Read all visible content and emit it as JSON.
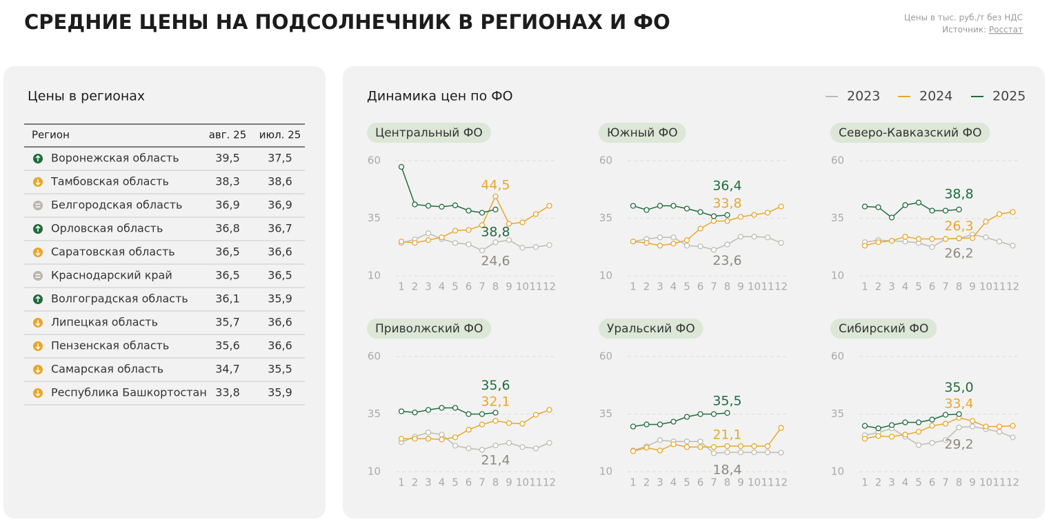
{
  "header": {
    "title": "СРЕДНИЕ ЦЕНЫ НА ПОДСОЛНЕЧНИК В РЕГИОНАХ И ФО",
    "note": "Цены в тыс. руб./т без НДС",
    "source_label": "Источник:",
    "source_link": "Росстат"
  },
  "table": {
    "title": "Цены в регионах",
    "header": [
      "Регион",
      "авг. 25",
      "июл. 25"
    ],
    "rows": [
      {
        "trend": "up",
        "cells": [
          "Воронежская область",
          "39,5",
          "37,5"
        ]
      },
      {
        "trend": "down",
        "cells": [
          "Тамбовская область",
          "38,3",
          "38,6"
        ]
      },
      {
        "trend": "flat",
        "cells": [
          "Белгородская область",
          "36,9",
          "36,9"
        ]
      },
      {
        "trend": "up",
        "cells": [
          "Орловская область",
          "36,8",
          "36,7"
        ]
      },
      {
        "trend": "down",
        "cells": [
          "Саратовская область",
          "36,5",
          "36,6"
        ]
      },
      {
        "trend": "flat",
        "cells": [
          "Краснодарский край",
          "36,5",
          "36,5"
        ]
      },
      {
        "trend": "up",
        "cells": [
          "Волгоградская область",
          "36,1",
          "35,9"
        ]
      },
      {
        "trend": "down",
        "cells": [
          "Липецкая область",
          "35,7",
          "36,6"
        ]
      },
      {
        "trend": "down",
        "cells": [
          "Пензенская область",
          "35,6",
          "36,6"
        ]
      },
      {
        "trend": "down",
        "cells": [
          "Самарская область",
          "34,7",
          "35,5"
        ]
      },
      {
        "trend": "down",
        "cells": [
          "Республика Башкортостан",
          "33,8",
          "35,9"
        ]
      }
    ]
  },
  "panel_title": "Динамика цен по ФО",
  "chart_data": [
    {
      "type": "line",
      "title": "Центральный ФО",
      "categories": [
        "1",
        "2",
        "3",
        "4",
        "5",
        "6",
        "7",
        "8",
        "9",
        "10",
        "11",
        "12"
      ],
      "ylim": [
        10,
        60
      ],
      "yticks": [
        10,
        35,
        60
      ],
      "grid": true,
      "series": [
        {
          "name": "2023",
          "color": "#bdbbb2",
          "values": [
            24.3,
            25.8,
            28.5,
            26,
            24.3,
            23.7,
            21,
            24.6,
            25.5,
            22.2,
            22.5,
            23.4
          ],
          "value_labels": [
            null,
            null,
            null,
            null,
            null,
            null,
            null,
            "24,6",
            null,
            null,
            null,
            null
          ]
        },
        {
          "name": "2024",
          "color": "#e8a629",
          "values": [
            24.9,
            24.3,
            25.5,
            26.7,
            29.6,
            29.9,
            32,
            44.5,
            32.6,
            33.2,
            36.8,
            40.4
          ],
          "value_labels": [
            null,
            null,
            null,
            null,
            null,
            null,
            null,
            "44,5",
            null,
            null,
            null,
            null
          ]
        },
        {
          "name": "2025",
          "color": "#1f6b3c",
          "values": [
            57.3,
            41,
            40.4,
            40,
            40.6,
            38.3,
            37.4,
            38.8,
            null,
            null,
            null,
            null
          ],
          "value_labels": [
            null,
            null,
            null,
            null,
            null,
            null,
            null,
            "38,8",
            null,
            null,
            null,
            null
          ]
        }
      ]
    },
    {
      "type": "line",
      "title": "Южный ФО",
      "categories": [
        "1",
        "2",
        "3",
        "4",
        "5",
        "6",
        "7",
        "8",
        "9",
        "10",
        "11",
        "12"
      ],
      "ylim": [
        10,
        60
      ],
      "yticks": [
        10,
        35,
        60
      ],
      "grid": true,
      "series": [
        {
          "name": "2023",
          "color": "#bdbbb2",
          "values": [
            24.9,
            26,
            26.7,
            26.7,
            23.1,
            22.8,
            21.3,
            23.6,
            27,
            27,
            26.7,
            24.3
          ],
          "value_labels": [
            null,
            null,
            null,
            null,
            null,
            null,
            null,
            "23,6",
            null,
            null,
            null,
            null
          ]
        },
        {
          "name": "2024",
          "color": "#e8a629",
          "values": [
            24.9,
            24.3,
            23.1,
            24,
            25.5,
            30.5,
            33.8,
            33.8,
            35.6,
            36.5,
            37.4,
            40.1
          ],
          "value_labels": [
            null,
            null,
            null,
            null,
            null,
            null,
            null,
            "33,8",
            null,
            null,
            null,
            null
          ]
        },
        {
          "name": "2025",
          "color": "#1f6b3c",
          "values": [
            40.4,
            38.6,
            40.4,
            40.4,
            39.2,
            37.7,
            35.9,
            36.4,
            null,
            null,
            null,
            null
          ],
          "value_labels": [
            null,
            null,
            null,
            null,
            null,
            null,
            null,
            "36,4",
            null,
            null,
            null,
            null
          ]
        }
      ]
    },
    {
      "type": "line",
      "title": "Северо-Кавказский ФО",
      "categories": [
        "1",
        "2",
        "3",
        "4",
        "5",
        "6",
        "7",
        "8",
        "9",
        "10",
        "11",
        "12"
      ],
      "ylim": [
        10,
        60
      ],
      "yticks": [
        10,
        35,
        60
      ],
      "grid": true,
      "series": [
        {
          "name": "2023",
          "color": "#bdbbb2",
          "values": [
            24.6,
            25.5,
            25.2,
            24.9,
            24.3,
            22.5,
            26,
            26.2,
            27.9,
            26.7,
            24.9,
            23.1
          ],
          "value_labels": [
            null,
            null,
            null,
            null,
            null,
            null,
            null,
            "26,2",
            null,
            null,
            null,
            null
          ]
        },
        {
          "name": "2024",
          "color": "#e8a629",
          "values": [
            23.1,
            24.6,
            25.2,
            27,
            26,
            26,
            26,
            26.3,
            26.4,
            33.5,
            36.8,
            37.7
          ],
          "value_labels": [
            null,
            null,
            null,
            null,
            null,
            null,
            null,
            "26,3",
            null,
            null,
            null,
            null
          ]
        },
        {
          "name": "2025",
          "color": "#1f6b3c",
          "values": [
            40.1,
            39.8,
            35.3,
            40.7,
            41.8,
            38.3,
            38.3,
            38.8,
            null,
            null,
            null,
            null
          ],
          "value_labels": [
            null,
            null,
            null,
            null,
            null,
            null,
            null,
            "38,8",
            null,
            null,
            null,
            null
          ]
        }
      ]
    },
    {
      "type": "line",
      "title": "Приволжский ФО",
      "categories": [
        "1",
        "2",
        "3",
        "4",
        "5",
        "6",
        "7",
        "8",
        "9",
        "10",
        "11",
        "12"
      ],
      "ylim": [
        10,
        60
      ],
      "yticks": [
        10,
        35,
        60
      ],
      "grid": true,
      "series": [
        {
          "name": "2023",
          "color": "#bdbbb2",
          "values": [
            22.8,
            25.2,
            27,
            26.1,
            21.3,
            20.1,
            19.5,
            21.4,
            22.5,
            20.7,
            20.1,
            22.5
          ],
          "value_labels": [
            null,
            null,
            null,
            null,
            null,
            null,
            null,
            "21,4",
            null,
            null,
            null,
            null
          ]
        },
        {
          "name": "2024",
          "color": "#e8a629",
          "values": [
            24.3,
            24.3,
            24.3,
            24,
            24.9,
            28.2,
            30.5,
            32.1,
            31.1,
            30.8,
            34.7,
            36.8
          ],
          "value_labels": [
            null,
            null,
            null,
            null,
            null,
            null,
            null,
            "32,1",
            null,
            null,
            null,
            null
          ]
        },
        {
          "name": "2025",
          "color": "#1f6b3c",
          "values": [
            36.2,
            35.7,
            36.8,
            37.7,
            37.7,
            35,
            35,
            35.6,
            null,
            null,
            null,
            null
          ],
          "value_labels": [
            null,
            null,
            null,
            null,
            null,
            null,
            null,
            "35,6",
            null,
            null,
            null,
            null
          ]
        }
      ]
    },
    {
      "type": "line",
      "title": "Уральский ФО",
      "categories": [
        "1",
        "2",
        "3",
        "4",
        "5",
        "6",
        "7",
        "8",
        "9",
        "10",
        "11",
        "12"
      ],
      "ylim": [
        10,
        60
      ],
      "yticks": [
        10,
        35,
        60
      ],
      "grid": true,
      "series": [
        {
          "name": "2023",
          "color": "#bdbbb2",
          "values": [
            19.2,
            21,
            23.7,
            23.1,
            23.1,
            23.1,
            18,
            18.4,
            18.4,
            18.4,
            18.4,
            18.3
          ],
          "value_labels": [
            null,
            null,
            null,
            null,
            null,
            null,
            null,
            "18,4",
            null,
            null,
            null,
            null
          ]
        },
        {
          "name": "2024",
          "color": "#e8a629",
          "values": [
            18.9,
            20.4,
            19.2,
            21.9,
            20.7,
            20.7,
            20.7,
            21.1,
            21.1,
            21.1,
            21.1,
            29
          ],
          "value_labels": [
            null,
            null,
            null,
            null,
            null,
            null,
            null,
            "21,1",
            null,
            null,
            null,
            null
          ]
        },
        {
          "name": "2025",
          "color": "#1f6b3c",
          "values": [
            29.6,
            30.5,
            30.5,
            31.7,
            33.8,
            35,
            35,
            35.5,
            null,
            null,
            null,
            null
          ],
          "value_labels": [
            null,
            null,
            null,
            null,
            null,
            null,
            null,
            "35,5",
            null,
            null,
            null,
            null
          ]
        }
      ]
    },
    {
      "type": "line",
      "title": "Сибирский ФО",
      "categories": [
        "1",
        "2",
        "3",
        "4",
        "5",
        "6",
        "7",
        "8",
        "9",
        "10",
        "11",
        "12"
      ],
      "ylim": [
        10,
        60
      ],
      "yticks": [
        10,
        35,
        60
      ],
      "grid": true,
      "series": [
        {
          "name": "2023",
          "color": "#bdbbb2",
          "values": [
            25.8,
            27,
            28.8,
            25.2,
            21.6,
            22.5,
            23.7,
            29.2,
            29.6,
            28.5,
            27.3,
            24.9
          ],
          "value_labels": [
            null,
            null,
            null,
            null,
            null,
            null,
            null,
            "29,2",
            null,
            null,
            null,
            null
          ]
        },
        {
          "name": "2024",
          "color": "#e8a629",
          "values": [
            24.3,
            25.5,
            25.2,
            26.1,
            27.3,
            29.9,
            30.8,
            33.4,
            32,
            29.6,
            29.6,
            29.9
          ],
          "value_labels": [
            null,
            null,
            null,
            null,
            null,
            null,
            null,
            "33,4",
            null,
            null,
            null,
            null
          ]
        },
        {
          "name": "2025",
          "color": "#1f6b3c",
          "values": [
            29.9,
            28.8,
            30.2,
            31.4,
            31.4,
            32.6,
            34.7,
            35,
            null,
            null,
            null,
            null
          ],
          "value_labels": [
            null,
            null,
            null,
            null,
            null,
            null,
            null,
            "35,0",
            null,
            null,
            null,
            null
          ]
        }
      ]
    }
  ]
}
